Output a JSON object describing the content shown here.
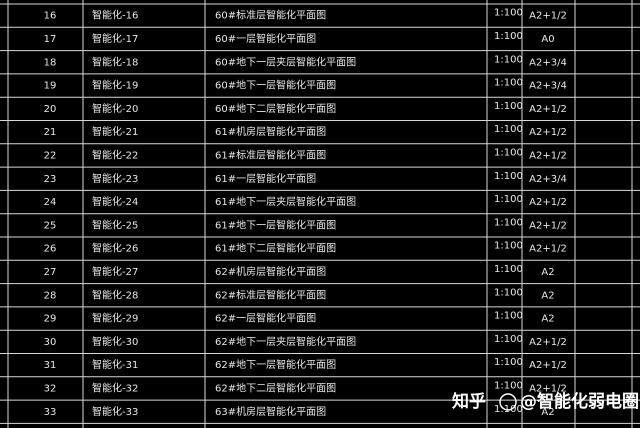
{
  "table": {
    "rows": [
      [
        "16",
        "智能化-16",
        "60#标准层智能化平面图",
        "1:100",
        "A2+1/2"
      ],
      [
        "17",
        "智能化-17",
        "60#一层智能化平面图",
        "1:100",
        "A0"
      ],
      [
        "18",
        "智能化-18",
        "60#地下一层夹层智能化平面图",
        "1:100",
        "A2+3/4"
      ],
      [
        "19",
        "智能化-19",
        "60#地下一层智能化平面图",
        "1:100",
        "A2+3/4"
      ],
      [
        "20",
        "智能化-20",
        "60#地下二层智能化平面图",
        "1:100",
        "A2+1/2"
      ],
      [
        "21",
        "智能化-21",
        "61#机房层智能化平面图",
        "1:100",
        "A2+1/2"
      ],
      [
        "22",
        "智能化-22",
        "61#标准层智能化平面图",
        "1:100",
        "A2+1/2"
      ],
      [
        "23",
        "智能化-23",
        "61#一层智能化平面图",
        "1:100",
        "A2+3/4"
      ],
      [
        "24",
        "智能化-24",
        "61#地下一层夹层智能化平面图",
        "1:100",
        "A2+1/2"
      ],
      [
        "25",
        "智能化-25",
        "61#地下一层智能化平面图",
        "1:100",
        "A2+1/2"
      ],
      [
        "26",
        "智能化-26",
        "61#地下二层智能化平面图",
        "1:100",
        "A2+1/2"
      ],
      [
        "27",
        "智能化-27",
        "62#机房层智能化平面图",
        "1:100",
        "A2"
      ],
      [
        "28",
        "智能化-28",
        "62#标准层智能化平面图",
        "1:100",
        "A2"
      ],
      [
        "29",
        "智能化-29",
        "62#一层智能化平面图",
        "1:100",
        "A2"
      ],
      [
        "30",
        "智能化-30",
        "62#地下一层夹层智能化平面图",
        "1:100",
        "A2+1/2"
      ],
      [
        "31",
        "智能化-31",
        "62#地下一层智能化平面图",
        "1:100",
        "A2+1/2"
      ],
      [
        "32",
        "智能化-32",
        "62#地下二层智能化平面图",
        "1:100",
        "A2+1/2"
      ],
      [
        "33",
        "智能化-33",
        "63#机房层智能化平面图",
        "1:100",
        "A2"
      ]
    ]
  },
  "watermark": {
    "site": "知乎",
    "account": "@智能化弱电圈"
  }
}
